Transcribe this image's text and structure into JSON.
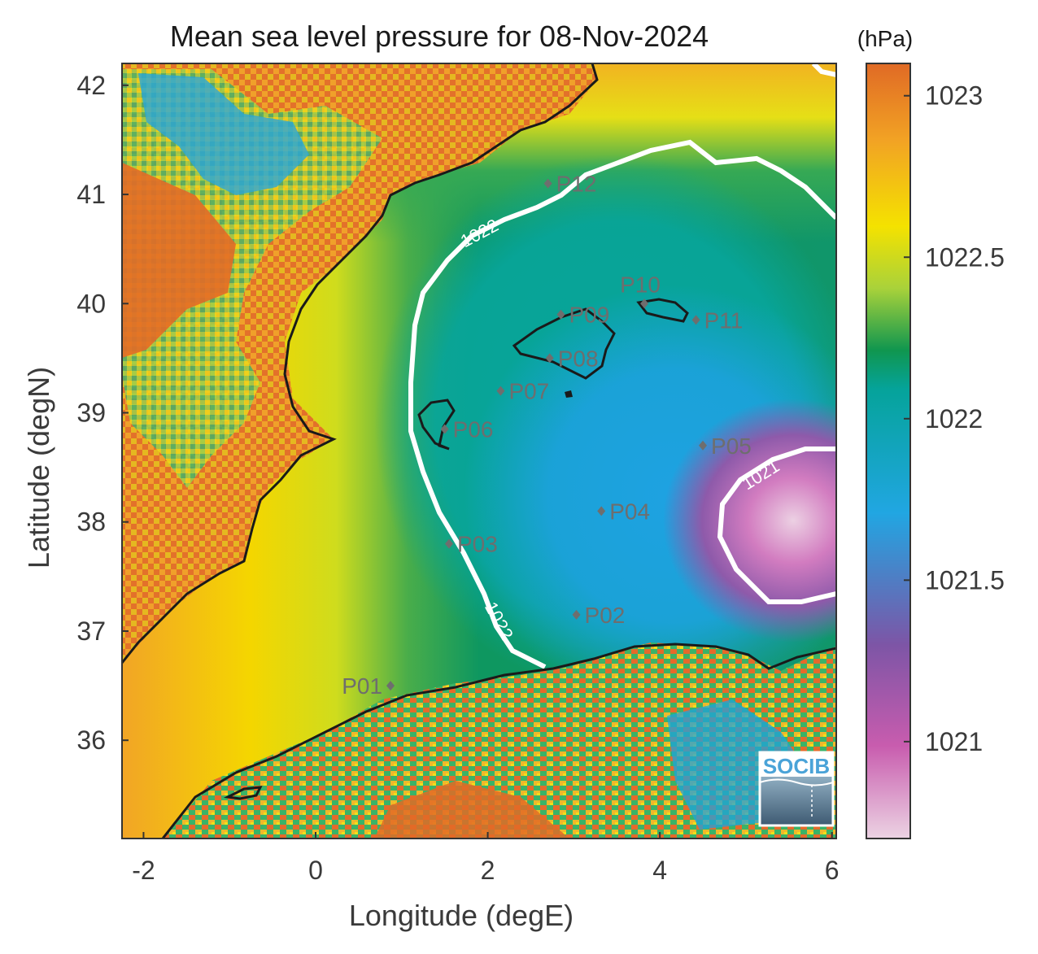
{
  "title": "Mean sea level pressure for 08-Nov-2024",
  "colorbar": {
    "unit": "(hPa)",
    "ticks": [
      {
        "label": "1023",
        "value": 1023
      },
      {
        "label": "1022.5",
        "value": 1022.5
      },
      {
        "label": "1022",
        "value": 1022
      },
      {
        "label": "1021.5",
        "value": 1021.5
      },
      {
        "label": "1021",
        "value": 1021
      }
    ],
    "range": [
      1020.7,
      1023.1
    ],
    "colors": [
      "#e8c8dc",
      "#c85cae",
      "#7d4fa2",
      "#26a4e0",
      "#0aa3a2",
      "#119654",
      "#a7d13c",
      "#f4e300",
      "#f4a624",
      "#e06a25"
    ]
  },
  "axes": {
    "xlabel": "Longitude (degE)",
    "ylabel": "Latitude (degN)",
    "xlim": [
      -2.25,
      6.05
    ],
    "ylim": [
      35.1,
      42.2
    ],
    "xticks": [
      {
        "label": "-2",
        "value": -2
      },
      {
        "label": "0",
        "value": 0
      },
      {
        "label": "2",
        "value": 2
      },
      {
        "label": "4",
        "value": 4
      },
      {
        "label": "6",
        "value": 6
      }
    ],
    "yticks": [
      {
        "label": "42",
        "value": 42
      },
      {
        "label": "41",
        "value": 41
      },
      {
        "label": "40",
        "value": 40
      },
      {
        "label": "39",
        "value": 39
      },
      {
        "label": "38",
        "value": 38
      },
      {
        "label": "37",
        "value": 37
      },
      {
        "label": "36",
        "value": 36
      }
    ]
  },
  "contours": [
    {
      "label": "1022",
      "value": 1022
    },
    {
      "label": "1021",
      "value": 1021
    }
  ],
  "stations": [
    {
      "name": "P01",
      "lon": 0.87,
      "lat": 36.5
    },
    {
      "name": "P02",
      "lon": 3.03,
      "lat": 37.15
    },
    {
      "name": "P03",
      "lon": 1.55,
      "lat": 37.8
    },
    {
      "name": "P04",
      "lon": 3.32,
      "lat": 38.1
    },
    {
      "name": "P05",
      "lon": 4.5,
      "lat": 38.7
    },
    {
      "name": "P06",
      "lon": 1.5,
      "lat": 38.85
    },
    {
      "name": "P07",
      "lon": 2.15,
      "lat": 39.2
    },
    {
      "name": "P08",
      "lon": 2.72,
      "lat": 39.5
    },
    {
      "name": "P09",
      "lon": 2.85,
      "lat": 39.9
    },
    {
      "name": "P10",
      "lon": 3.82,
      "lat": 40.0
    },
    {
      "name": "P11",
      "lon": 4.42,
      "lat": 39.85
    },
    {
      "name": "P12",
      "lon": 2.7,
      "lat": 41.1
    }
  ],
  "logo": {
    "text": "SOCIB"
  }
}
